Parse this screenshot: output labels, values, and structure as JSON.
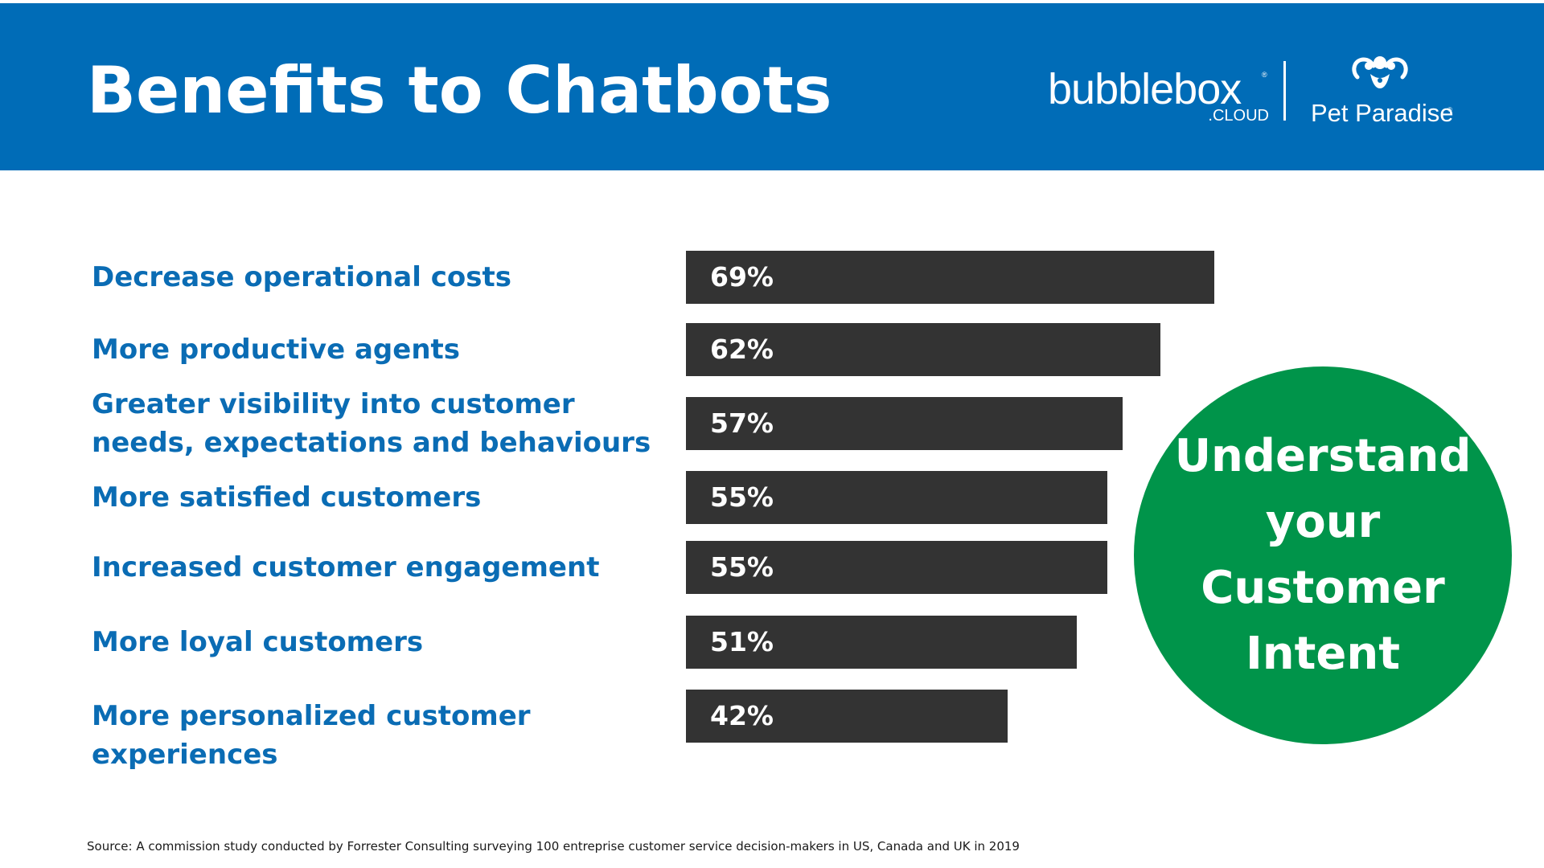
{
  "header": {
    "title": "Benefits to Chatbots",
    "background_color": "#006cb7"
  },
  "logos": {
    "bubblebox": {
      "word": "bubblebox",
      "registered": "®",
      "sub": ".CLOUD"
    },
    "pet_paradise": {
      "word": "Pet Paradise",
      "registered": "®",
      "icon": "pet-paradise-mark-icon"
    }
  },
  "chart_data": {
    "type": "bar",
    "orientation": "horizontal",
    "categories": [
      "Decrease operational costs",
      "More productive agents",
      "Greater visibility into customer\nneeds, expectations and behaviours",
      "More satisfied customers",
      "Increased customer engagement",
      "More loyal customers",
      "More personalized customer experiences"
    ],
    "values": [
      69,
      62,
      57,
      55,
      55,
      51,
      42
    ],
    "value_labels": [
      "69%",
      "62%",
      "57%",
      "55%",
      "55%",
      "51%",
      "42%"
    ],
    "xlim": [
      0,
      100
    ],
    "grid": false,
    "bar_color": "#333333",
    "label_color": "#0a6cb4"
  },
  "callout": {
    "text": "Understand\nyour\nCustomer\nIntent",
    "color": "#00944a"
  },
  "footer": {
    "source": "Source:  A commission study conducted by Forrester Consulting surveying 100 entreprise customer service decision-makers in US, Canada and UK in 2019"
  }
}
